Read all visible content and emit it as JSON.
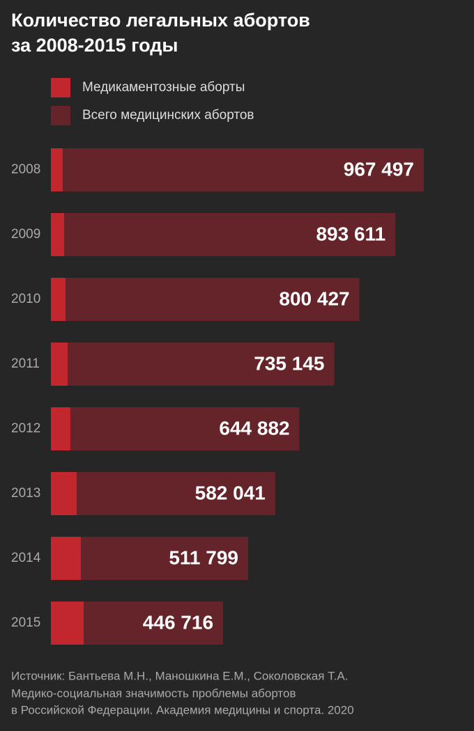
{
  "chart_data": {
    "type": "bar",
    "orientation": "horizontal",
    "overlay": true,
    "title": [
      "Количество легальных абортов",
      "за 2008-2015 годы"
    ],
    "categories": [
      "2008",
      "2009",
      "2010",
      "2011",
      "2012",
      "2013",
      "2014",
      "2015"
    ],
    "series": [
      {
        "name": "Медикаментозные аборты",
        "color": "#c1272d",
        "values": [
          30700,
          34400,
          38000,
          43400,
          50600,
          66900,
          77700,
          85000
        ]
      },
      {
        "name": "Всего медицинских абортов",
        "color": "#64242a",
        "values": [
          967497,
          893611,
          800427,
          735145,
          644882,
          582041,
          511799,
          446716
        ],
        "value_labels": [
          "967 497",
          "893 611",
          "800 427",
          "735 145",
          "644 882",
          "582 041",
          "511 799",
          "446 716"
        ]
      }
    ],
    "source": [
      "Источник: Бантьева М.Н., Маношкина Е.М., Соколовская Т.А.",
      "Медико-социальная значимость проблемы абортов",
      "в  Российской Федерации. Академия медицины и  спорта. 2020"
    ]
  }
}
